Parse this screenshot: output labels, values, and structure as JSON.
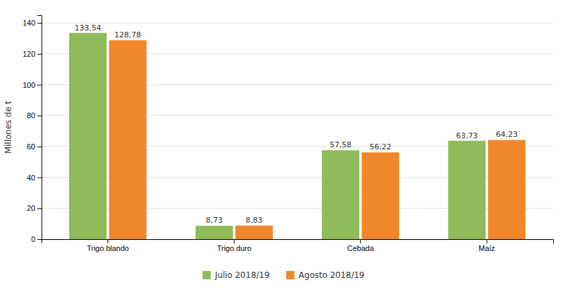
{
  "chart_data": {
    "type": "bar",
    "categories": [
      "Trigo blando",
      "Trigo duro",
      "Cebada",
      "Maíz"
    ],
    "series": [
      {
        "name": "Julio 2018/19",
        "color": "#8fbb5a",
        "values": [
          133.54,
          8.73,
          57.58,
          63.73
        ],
        "value_labels": [
          "133,54",
          "8,73",
          "57,58",
          "63,73"
        ]
      },
      {
        "name": "Agosto 2018/19",
        "color": "#f0872a",
        "values": [
          128.78,
          8.83,
          56.22,
          64.23
        ],
        "value_labels": [
          "128,78",
          "8,83",
          "56,22",
          "64,23"
        ]
      }
    ],
    "ylabel": "Millones de t",
    "ylim": [
      0,
      145
    ],
    "yticks": [
      0,
      20,
      40,
      60,
      80,
      100,
      120,
      140
    ],
    "grid": true,
    "legend": "bottom",
    "data_labels": true
  }
}
